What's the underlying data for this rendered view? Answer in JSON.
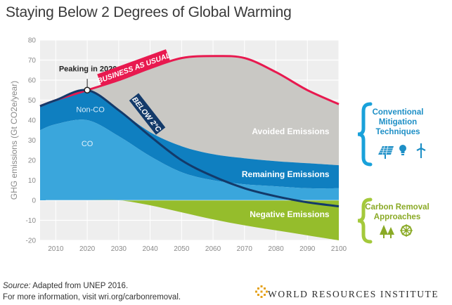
{
  "title": "Staying Below 2 Degrees of Global Warming",
  "footer": {
    "source_label": "Source:",
    "source_text": " Adapted from UNEP 2016.",
    "more_info": "For more information, visit wri.org/carbonremoval."
  },
  "organization": "WORLD RESOURCES INSTITUTE",
  "colors": {
    "business_as_usual": "#e8194f",
    "below_2c": "#133a6a",
    "avoided": "#c9c8c4",
    "non_co2": "#0f7fc0",
    "co2": "#3aa6dc",
    "negative": "#95bd2c",
    "conventional_bracket": "#19a1da",
    "removal_bracket": "#a4c93b"
  },
  "chart_data": {
    "type": "area",
    "ylabel": "GHG emissions (Gt CO2e/year)",
    "ylim": [
      -20,
      80
    ],
    "yticks": [
      80,
      70,
      60,
      50,
      40,
      30,
      20,
      10,
      0,
      -10,
      -20
    ],
    "xlim": [
      2005,
      2100
    ],
    "xticks": [
      2010,
      2020,
      2030,
      2040,
      2050,
      2060,
      2070,
      2080,
      2090,
      2100
    ],
    "grid": true,
    "x": [
      2005,
      2010,
      2020,
      2030,
      2040,
      2050,
      2060,
      2070,
      2080,
      2090,
      2100
    ],
    "series": [
      {
        "name": "BUSINESS AS USUAL",
        "type": "line",
        "values": [
          47,
          50,
          55,
          60,
          66,
          71,
          72,
          71,
          64,
          55,
          48
        ]
      },
      {
        "name": "BELOW 2°C",
        "type": "line",
        "values": [
          47,
          50,
          55,
          45,
          32,
          20,
          12,
          6,
          2,
          -1,
          -3
        ]
      },
      {
        "name": "Non-CO2",
        "type": "area",
        "values": [
          47,
          50,
          55,
          45,
          34,
          27,
          23,
          21,
          19.5,
          18.5,
          17.5
        ]
      },
      {
        "name": "CO2",
        "type": "area",
        "values": [
          35,
          38,
          40,
          32,
          22,
          14,
          10,
          8,
          7,
          6,
          6
        ]
      },
      {
        "name": "Negative Emissions",
        "type": "area",
        "values": [
          0,
          0,
          0,
          0,
          -2.5,
          -6,
          -9.5,
          -12.5,
          -15,
          -17.5,
          -20
        ]
      }
    ],
    "annotations": [
      {
        "text": "Peaking in 2020",
        "x": 2020,
        "y": 55
      },
      {
        "text": "Avoided Emissions"
      },
      {
        "text": "Remaining Emissions"
      },
      {
        "text": "Negative Emissions"
      }
    ],
    "side_labels": {
      "conventional": [
        "Conventional",
        "Mitigation",
        "Techniques"
      ],
      "removal": [
        "Carbon Removal",
        "Approaches"
      ]
    }
  }
}
